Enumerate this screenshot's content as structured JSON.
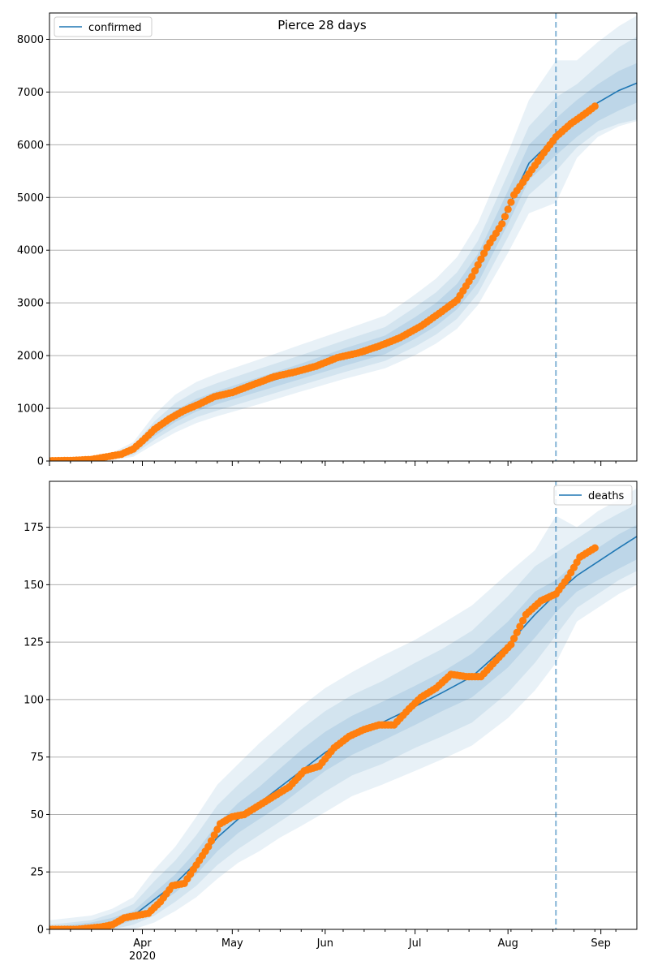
{
  "chart_data": [
    {
      "type": "line",
      "title": "Pierce 28 days",
      "legend": {
        "label": "confirmed",
        "placement": "top-left"
      },
      "ylim": [
        0,
        8500
      ],
      "y_ticks": [
        0,
        1000,
        2000,
        3000,
        4000,
        5000,
        6000,
        7000,
        8000
      ],
      "grid": "horizontal",
      "forecast_start": "2020-08-17",
      "x_tick_labels": [],
      "model": {
        "x": [
          "2020-03-01",
          "2020-03-15",
          "2020-03-22",
          "2020-03-29",
          "2020-04-05",
          "2020-04-12",
          "2020-04-19",
          "2020-04-26",
          "2020-05-10",
          "2020-05-24",
          "2020-06-07",
          "2020-06-21",
          "2020-07-01",
          "2020-07-08",
          "2020-07-15",
          "2020-07-22",
          "2020-08-01",
          "2020-08-08",
          "2020-08-17",
          "2020-08-24",
          "2020-08-31",
          "2020-09-07",
          "2020-09-13"
        ],
        "mean": [
          0,
          30,
          80,
          200,
          550,
          850,
          1050,
          1200,
          1450,
          1700,
          1960,
          2200,
          2520,
          2780,
          3120,
          3650,
          4800,
          5650,
          6150,
          6500,
          6800,
          7030,
          7170
        ],
        "band_inner": [
          [
            0,
            0
          ],
          [
            20,
            40
          ],
          [
            60,
            100
          ],
          [
            160,
            240
          ],
          [
            470,
            640
          ],
          [
            740,
            960
          ],
          [
            940,
            1180
          ],
          [
            1080,
            1330
          ],
          [
            1320,
            1590
          ],
          [
            1560,
            1850
          ],
          [
            1800,
            2130
          ],
          [
            2030,
            2380
          ],
          [
            2320,
            2730
          ],
          [
            2560,
            3000
          ],
          [
            2880,
            3360
          ],
          [
            3380,
            3930
          ],
          [
            4500,
            5130
          ],
          [
            5330,
            6000
          ],
          [
            5800,
            6500
          ],
          [
            6150,
            6850
          ],
          [
            6450,
            7150
          ],
          [
            6650,
            7400
          ],
          [
            6800,
            7550
          ]
        ],
        "band_mid": [
          [
            0,
            0
          ],
          [
            10,
            50
          ],
          [
            40,
            130
          ],
          [
            120,
            300
          ],
          [
            400,
            750
          ],
          [
            640,
            1100
          ],
          [
            830,
            1330
          ],
          [
            960,
            1480
          ],
          [
            1200,
            1750
          ],
          [
            1440,
            2010
          ],
          [
            1680,
            2280
          ],
          [
            1900,
            2540
          ],
          [
            2170,
            2920
          ],
          [
            2400,
            3200
          ],
          [
            2700,
            3580
          ],
          [
            3180,
            4180
          ],
          [
            4250,
            5450
          ],
          [
            5050,
            6350
          ],
          [
            5500,
            6900
          ],
          [
            5950,
            7150
          ],
          [
            6250,
            7500
          ],
          [
            6400,
            7850
          ],
          [
            6480,
            8050
          ]
        ],
        "band_outer": [
          [
            0,
            0
          ],
          [
            0,
            60
          ],
          [
            20,
            160
          ],
          [
            80,
            360
          ],
          [
            320,
            880
          ],
          [
            540,
            1260
          ],
          [
            720,
            1500
          ],
          [
            850,
            1660
          ],
          [
            1080,
            1930
          ],
          [
            1320,
            2210
          ],
          [
            1550,
            2480
          ],
          [
            1760,
            2760
          ],
          [
            2010,
            3160
          ],
          [
            2230,
            3460
          ],
          [
            2510,
            3870
          ],
          [
            2960,
            4520
          ],
          [
            3950,
            5850
          ],
          [
            4700,
            6850
          ],
          [
            4900,
            7600
          ],
          [
            5750,
            7600
          ],
          [
            6150,
            7950
          ],
          [
            6350,
            8250
          ],
          [
            6450,
            8450
          ]
        ]
      },
      "observed": {
        "x": [
          "2020-03-01",
          "2020-03-08",
          "2020-03-15",
          "2020-03-20",
          "2020-03-25",
          "2020-03-29",
          "2020-04-01",
          "2020-04-05",
          "2020-04-10",
          "2020-04-15",
          "2020-04-20",
          "2020-04-25",
          "2020-05-01",
          "2020-05-08",
          "2020-05-15",
          "2020-05-22",
          "2020-05-29",
          "2020-06-05",
          "2020-06-12",
          "2020-06-19",
          "2020-06-26",
          "2020-07-03",
          "2020-07-10",
          "2020-07-15",
          "2020-07-20",
          "2020-07-25",
          "2020-07-30",
          "2020-08-03",
          "2020-08-08",
          "2020-08-13",
          "2020-08-17",
          "2020-08-22",
          "2020-08-27",
          "2020-08-30"
        ],
        "y": [
          5,
          10,
          30,
          80,
          130,
          230,
          380,
          600,
          800,
          960,
          1080,
          1220,
          1300,
          1450,
          1600,
          1690,
          1800,
          1960,
          2050,
          2180,
          2340,
          2560,
          2840,
          3050,
          3500,
          4050,
          4500,
          5050,
          5450,
          5850,
          6150,
          6400,
          6600,
          6730
        ]
      }
    },
    {
      "type": "line",
      "legend": {
        "label": "deaths",
        "placement": "top-right"
      },
      "ylim": [
        0,
        195
      ],
      "y_ticks": [
        0,
        25,
        50,
        75,
        100,
        125,
        150,
        175
      ],
      "grid": "horizontal",
      "forecast_start": "2020-08-17",
      "x_tick_labels": [
        {
          "date": "2020-04-01",
          "label": "Apr",
          "sub": "2020"
        },
        {
          "date": "2020-05-01",
          "label": "May"
        },
        {
          "date": "2020-06-01",
          "label": "Jun"
        },
        {
          "date": "2020-07-01",
          "label": "Jul"
        },
        {
          "date": "2020-08-01",
          "label": "Aug"
        },
        {
          "date": "2020-09-01",
          "label": "Sep"
        }
      ],
      "model": {
        "x": [
          "2020-03-01",
          "2020-03-15",
          "2020-03-22",
          "2020-03-29",
          "2020-04-05",
          "2020-04-12",
          "2020-04-19",
          "2020-04-26",
          "2020-05-03",
          "2020-05-10",
          "2020-05-17",
          "2020-05-24",
          "2020-06-01",
          "2020-06-10",
          "2020-06-20",
          "2020-07-01",
          "2020-07-10",
          "2020-07-20",
          "2020-08-01",
          "2020-08-10",
          "2020-08-17",
          "2020-08-24",
          "2020-08-31",
          "2020-09-07",
          "2020-09-13"
        ],
        "mean": [
          0,
          1,
          3,
          6,
          13,
          20,
          29,
          40,
          48,
          55,
          62,
          69,
          77,
          84,
          90,
          97,
          103,
          110,
          124,
          137,
          146,
          154,
          160,
          166,
          171
        ],
        "band_inner": [
          [
            0,
            1
          ],
          [
            0,
            3
          ],
          [
            1,
            5
          ],
          [
            4,
            8
          ],
          [
            10,
            16
          ],
          [
            16,
            24
          ],
          [
            24,
            34
          ],
          [
            34,
            46
          ],
          [
            42,
            55
          ],
          [
            48,
            62
          ],
          [
            54,
            70
          ],
          [
            61,
            78
          ],
          [
            69,
            86
          ],
          [
            76,
            93
          ],
          [
            82,
            99
          ],
          [
            89,
            106
          ],
          [
            95,
            112
          ],
          [
            101,
            120
          ],
          [
            114,
            134
          ],
          [
            127,
            147
          ],
          [
            138,
            152
          ],
          [
            147,
            160
          ],
          [
            152,
            166
          ],
          [
            157,
            172
          ],
          [
            161,
            176
          ]
        ],
        "band_mid": [
          [
            0,
            2
          ],
          [
            0,
            4
          ],
          [
            0,
            7
          ],
          [
            2,
            11
          ],
          [
            6,
            21
          ],
          [
            12,
            30
          ],
          [
            19,
            41
          ],
          [
            28,
            54
          ],
          [
            35,
            63
          ],
          [
            41,
            71
          ],
          [
            47,
            79
          ],
          [
            53,
            87
          ],
          [
            60,
            95
          ],
          [
            67,
            102
          ],
          [
            72,
            108
          ],
          [
            79,
            116
          ],
          [
            84,
            122
          ],
          [
            90,
            130
          ],
          [
            103,
            145
          ],
          [
            116,
            158
          ],
          [
            128,
            164
          ],
          [
            140,
            170
          ],
          [
            146,
            176
          ],
          [
            152,
            181
          ],
          [
            156,
            185
          ]
        ],
        "band_outer": [
          [
            0,
            4
          ],
          [
            0,
            6
          ],
          [
            0,
            9
          ],
          [
            0,
            14
          ],
          [
            3,
            26
          ],
          [
            8,
            36
          ],
          [
            14,
            49
          ],
          [
            22,
            63
          ],
          [
            29,
            72
          ],
          [
            34,
            81
          ],
          [
            40,
            89
          ],
          [
            45,
            97
          ],
          [
            51,
            105
          ],
          [
            58,
            112
          ],
          [
            63,
            119
          ],
          [
            69,
            126
          ],
          [
            74,
            133
          ],
          [
            80,
            141
          ],
          [
            92,
            155
          ],
          [
            104,
            165
          ],
          [
            116,
            180
          ],
          [
            134,
            175
          ],
          [
            140,
            182
          ],
          [
            146,
            187
          ],
          [
            150,
            192
          ]
        ]
      },
      "observed": {
        "x": [
          "2020-03-01",
          "2020-03-10",
          "2020-03-18",
          "2020-03-22",
          "2020-03-26",
          "2020-03-30",
          "2020-04-03",
          "2020-04-07",
          "2020-04-11",
          "2020-04-15",
          "2020-04-19",
          "2020-04-23",
          "2020-04-27",
          "2020-05-01",
          "2020-05-05",
          "2020-05-10",
          "2020-05-15",
          "2020-05-20",
          "2020-05-25",
          "2020-05-30",
          "2020-06-04",
          "2020-06-09",
          "2020-06-14",
          "2020-06-19",
          "2020-06-24",
          "2020-06-29",
          "2020-07-03",
          "2020-07-08",
          "2020-07-13",
          "2020-07-18",
          "2020-07-23",
          "2020-07-28",
          "2020-08-02",
          "2020-08-07",
          "2020-08-12",
          "2020-08-17",
          "2020-08-21",
          "2020-08-25",
          "2020-08-30"
        ],
        "y": [
          0,
          0,
          1,
          2,
          5,
          6,
          7,
          12,
          19,
          20,
          28,
          36,
          46,
          49,
          50,
          54,
          58,
          62,
          69,
          71,
          79,
          84,
          87,
          89,
          89,
          96,
          101,
          105,
          111,
          110,
          110,
          117,
          124,
          137,
          143,
          146,
          153,
          162,
          166
        ]
      }
    }
  ]
}
